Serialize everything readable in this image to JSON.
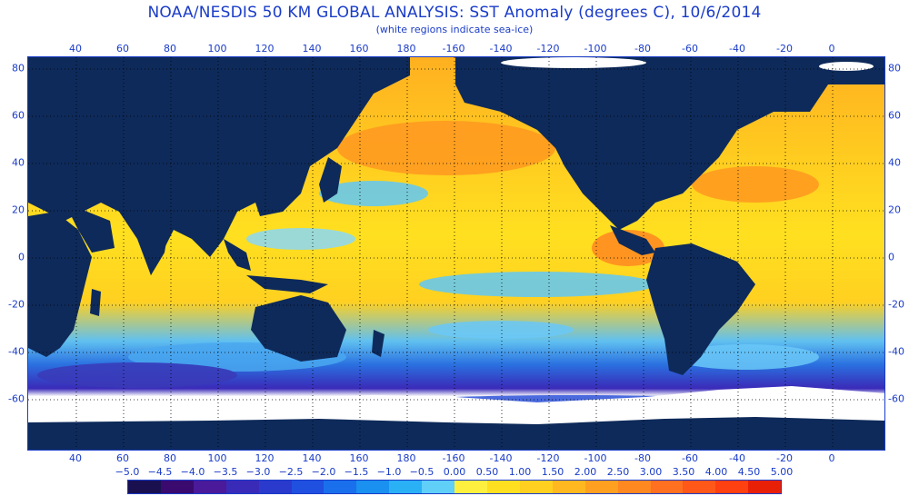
{
  "title": "NOAA/NESDIS 50 KM GLOBAL ANALYSIS: SST Anomaly (degrees C), 10/6/2014",
  "subtitle": "(white regions indicate sea-ice)",
  "longitude_labels_top": [
    "40",
    "60",
    "80",
    "100",
    "120",
    "140",
    "160",
    "180",
    "-160",
    "-140",
    "-120",
    "-100",
    "-80",
    "-60",
    "-40",
    "-20",
    "0"
  ],
  "longitude_labels_bottom": [
    "40",
    "60",
    "80",
    "100",
    "120",
    "140",
    "160",
    "180",
    "-160",
    "-140",
    "-120",
    "-100",
    "-80",
    "-60",
    "-40",
    "-20",
    "0"
  ],
  "latitude_labels_left": [
    "80",
    "60",
    "40",
    "20",
    "0",
    "-20",
    "-40",
    "-60"
  ],
  "latitude_labels_right": [
    "80",
    "60",
    "40",
    "20",
    "0",
    "-20",
    "-40",
    "-60"
  ],
  "colorbar": {
    "tick_labels": [
      "−5.0",
      "−4.5",
      "−4.0",
      "−3.5",
      "−3.0",
      "−2.5",
      "−2.0",
      "−1.5",
      "−1.0",
      "−0.5",
      "0.00",
      "0.50",
      "1.00",
      "1.50",
      "2.00",
      "2.50",
      "3.00",
      "3.50",
      "4.00",
      "4.50",
      "5.00"
    ],
    "colors": [
      "#1a1050",
      "#3a0a6e",
      "#4a1a9a",
      "#3a2ab8",
      "#2a3acc",
      "#2050e0",
      "#1a70ec",
      "#1a90f0",
      "#2ab0f4",
      "#60d0f8",
      "#fff040",
      "#ffe020",
      "#ffd020",
      "#ffb820",
      "#ffa020",
      "#ff8820",
      "#ff7020",
      "#ff5818",
      "#ff4010",
      "#e82008"
    ]
  },
  "legend_colors": {
    "land": "#0e2a5a",
    "sea_ice": "#ffffff",
    "gridline": "#000000",
    "text": "#1a3cc8"
  }
}
